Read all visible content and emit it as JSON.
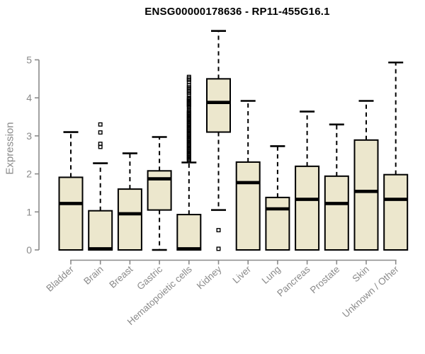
{
  "header": {
    "title": "ENSG00000178636 - RP11-455G16.1"
  },
  "axes": {
    "y_label": "Expression"
  },
  "colors": {
    "box_fill": "#ece7cd",
    "box_border": "#000000",
    "median": "#000000",
    "whisker": "#000000",
    "axis": "#8a8a8a",
    "title": "#000000",
    "background": "#ffffff"
  },
  "chart_data": {
    "type": "boxplot",
    "title": "ENSG00000178636 - RP11-455G16.1",
    "xlabel": "",
    "ylabel": "Expression",
    "ylim": [
      0,
      5.9
    ],
    "yticks": [
      0,
      1,
      2,
      3,
      4,
      5
    ],
    "grid": false,
    "categories": [
      "Bladder",
      "Brain",
      "Breast",
      "Gastric",
      "Hematopoietic cells",
      "Kidney",
      "Liver",
      "Lung",
      "Pancreas",
      "Prostate",
      "Skin",
      "Unknown / Other"
    ],
    "series": [
      {
        "name": "Bladder",
        "whisker_low": 0,
        "q1": 0,
        "median": 1.22,
        "q3": 1.91,
        "whisker_high": 3.1,
        "outliers": []
      },
      {
        "name": "Brain",
        "whisker_low": 0,
        "q1": 0,
        "median": 0.03,
        "q3": 1.03,
        "whisker_high": 2.28,
        "outliers": [
          2.71,
          2.79,
          3.09,
          3.3
        ]
      },
      {
        "name": "Breast",
        "whisker_low": 0,
        "q1": 0,
        "median": 0.95,
        "q3": 1.6,
        "whisker_high": 2.54,
        "outliers": []
      },
      {
        "name": "Gastric",
        "whisker_low": 0,
        "q1": 1.05,
        "median": 1.87,
        "q3": 2.08,
        "whisker_high": 2.97,
        "outliers": []
      },
      {
        "name": "Hematopoietic cells",
        "whisker_low": 0,
        "q1": 0,
        "median": 0.03,
        "q3": 0.93,
        "whisker_high": 2.3,
        "outliers": [
          2.35,
          2.38,
          2.41,
          2.44,
          2.47,
          2.5,
          2.53,
          2.56,
          2.59,
          2.62,
          2.65,
          2.68,
          2.71,
          2.74,
          2.77,
          2.8,
          2.83,
          2.86,
          2.89,
          2.92,
          2.95,
          2.98,
          3.01,
          3.04,
          3.07,
          3.1,
          3.13,
          3.16,
          3.19,
          3.22,
          3.25,
          3.28,
          3.31,
          3.34,
          3.37,
          3.4,
          3.43,
          3.46,
          3.49,
          3.52,
          3.55,
          3.58,
          3.61,
          3.64,
          3.67,
          3.76,
          3.79,
          3.82,
          3.85,
          3.88,
          3.91,
          3.94,
          3.97,
          4.0,
          4.08,
          4.13,
          4.18,
          4.23,
          4.28,
          4.33,
          4.42,
          4.47,
          4.51,
          4.55
        ]
      },
      {
        "name": "Kidney",
        "whisker_low": 1.05,
        "q1": 3.1,
        "median": 3.88,
        "q3": 4.5,
        "whisker_high": 5.76,
        "outliers": [
          0.52,
          0.03
        ]
      },
      {
        "name": "Liver",
        "whisker_low": 0,
        "q1": 0,
        "median": 1.77,
        "q3": 2.31,
        "whisker_high": 3.92,
        "outliers": []
      },
      {
        "name": "Lung",
        "whisker_low": 0,
        "q1": 0,
        "median": 1.08,
        "q3": 1.38,
        "whisker_high": 2.73,
        "outliers": []
      },
      {
        "name": "Pancreas",
        "whisker_low": 0,
        "q1": 0,
        "median": 1.33,
        "q3": 2.2,
        "whisker_high": 3.64,
        "outliers": []
      },
      {
        "name": "Prostate",
        "whisker_low": 0,
        "q1": 0,
        "median": 1.22,
        "q3": 1.94,
        "whisker_high": 3.3,
        "outliers": []
      },
      {
        "name": "Skin",
        "whisker_low": 0,
        "q1": 0,
        "median": 1.54,
        "q3": 2.89,
        "whisker_high": 3.92,
        "outliers": []
      },
      {
        "name": "Unknown / Other",
        "whisker_low": 0,
        "q1": 0,
        "median": 1.33,
        "q3": 1.98,
        "whisker_high": 4.93,
        "outliers": []
      }
    ]
  }
}
